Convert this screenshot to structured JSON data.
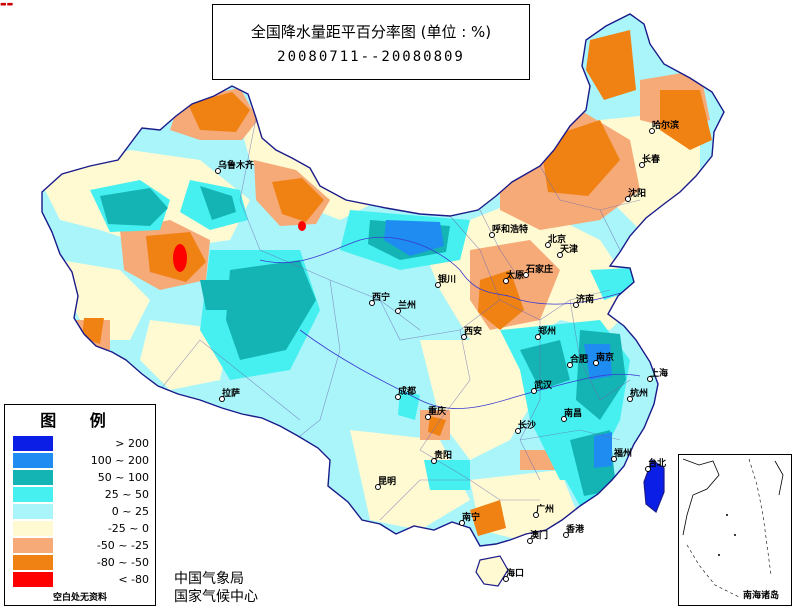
{
  "header": {
    "title": "全国降水量距平百分率图 (单位 : %)",
    "date_range": "20080711--20080809"
  },
  "legend": {
    "title": "图 例",
    "items": [
      {
        "label": "> 200",
        "color": "#0a1ee6"
      },
      {
        "label": "100 ~ 200",
        "color": "#1e8cf0"
      },
      {
        "label": "50 ~ 100",
        "color": "#14b4b4"
      },
      {
        "label": "25 ~ 50",
        "color": "#46f0f0"
      },
      {
        "label": "0 ~ 25",
        "color": "#aaf5fa"
      },
      {
        "label": "-25 ~ 0",
        "color": "#fffad2"
      },
      {
        "label": "-50 ~ -25",
        "color": "#f5aa78"
      },
      {
        "label": "-80 ~ -50",
        "color": "#f08214"
      },
      {
        "label": "< -80",
        "color": "#ff0000"
      }
    ],
    "no_data_label": "空白处无资料"
  },
  "footer": {
    "agency_1": "中国气象局",
    "agency_2": "国家气候中心"
  },
  "inset": {
    "label": "南海诸岛"
  },
  "cities": [
    {
      "id": "urumqi",
      "name": "乌鲁木齐"
    },
    {
      "id": "harbin",
      "name": "哈尔滨"
    },
    {
      "id": "changchun",
      "name": "长春"
    },
    {
      "id": "shenyang",
      "name": "沈阳"
    },
    {
      "id": "hohhot",
      "name": "呼和浩特"
    },
    {
      "id": "beijing",
      "name": "北京"
    },
    {
      "id": "tianjin",
      "name": "天津"
    },
    {
      "id": "shijiazhuang",
      "name": "石家庄"
    },
    {
      "id": "taiyuan",
      "name": "太原"
    },
    {
      "id": "jinan",
      "name": "济南"
    },
    {
      "id": "yinchuan",
      "name": "银川"
    },
    {
      "id": "xining",
      "name": "西宁"
    },
    {
      "id": "lanzhou",
      "name": "兰州"
    },
    {
      "id": "xian",
      "name": "西安"
    },
    {
      "id": "zhengzhou",
      "name": "郑州"
    },
    {
      "id": "hefei",
      "name": "合肥"
    },
    {
      "id": "nanjing",
      "name": "南京"
    },
    {
      "id": "shanghai",
      "name": "上海"
    },
    {
      "id": "hangzhou",
      "name": "杭州"
    },
    {
      "id": "wuhan",
      "name": "武汉"
    },
    {
      "id": "lhasa",
      "name": "拉萨"
    },
    {
      "id": "chengdu",
      "name": "成都"
    },
    {
      "id": "chongqing",
      "name": "重庆"
    },
    {
      "id": "changsha",
      "name": "长沙"
    },
    {
      "id": "nanchang",
      "name": "南昌"
    },
    {
      "id": "fuzhou",
      "name": "福州"
    },
    {
      "id": "taibei",
      "name": "台北"
    },
    {
      "id": "guiyang",
      "name": "贵阳"
    },
    {
      "id": "kunming",
      "name": "昆明"
    },
    {
      "id": "nanning",
      "name": "南宁"
    },
    {
      "id": "guangzhou",
      "name": "广州"
    },
    {
      "id": "hongkong",
      "name": "香港"
    },
    {
      "id": "macau",
      "name": "澳门"
    },
    {
      "id": "haikou",
      "name": "海口"
    }
  ]
}
